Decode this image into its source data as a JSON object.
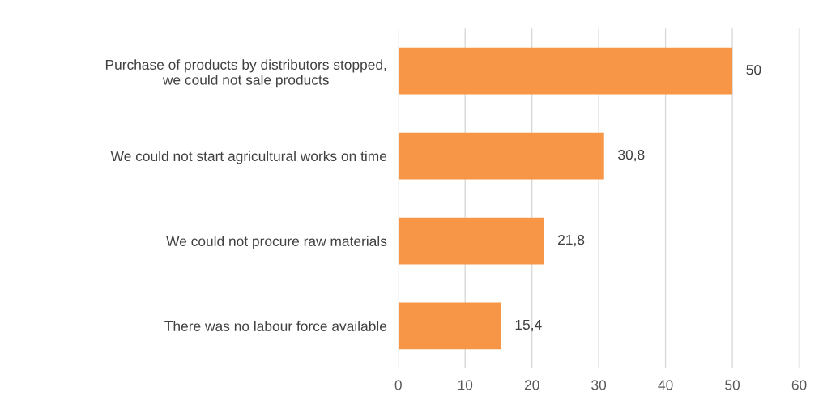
{
  "chart_data": {
    "type": "bar",
    "orientation": "horizontal",
    "categories": [
      "Purchase of products by distributors stopped,\nwe could not sale products",
      "We could not start agricultural works on time",
      "We could not procure raw materials",
      "There was no labour force available"
    ],
    "values": [
      50,
      30.8,
      21.8,
      15.4
    ],
    "value_labels": [
      "50",
      "30,8",
      "21,8",
      "15,4"
    ],
    "color": "#f79646",
    "xlim": [
      0,
      60
    ],
    "xticks": [
      0,
      10,
      20,
      30,
      40,
      50,
      60
    ],
    "grid": "x",
    "legend": false
  }
}
